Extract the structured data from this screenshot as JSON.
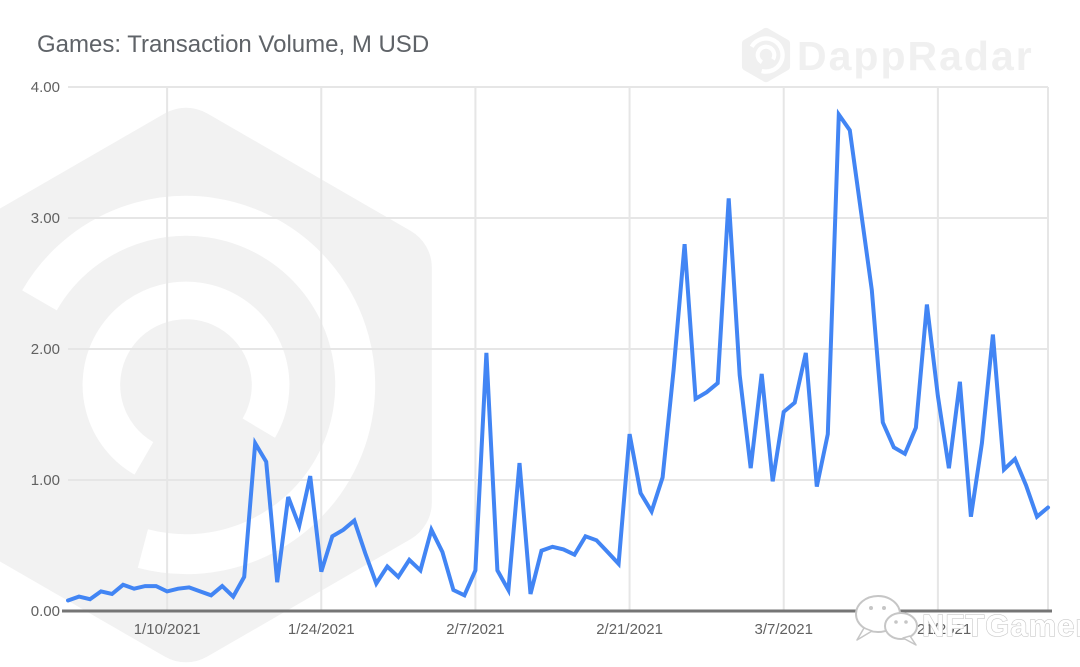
{
  "watermarks": {
    "dappradar": "DappRadar",
    "nftgamer": "NFTGamer"
  },
  "chart_data": {
    "type": "line",
    "title": "Games: Transaction Volume, M USD",
    "series_name": "Games transaction volume",
    "unit": "M USD",
    "line_color": "#4285f4",
    "grid_color": "#e6e6e6",
    "axis_color": "#757575",
    "label_color": "#616161",
    "title_color": "#5f6368",
    "watermark_color": "#f2f2f2",
    "legend": "none",
    "grid": true,
    "ylim": [
      0,
      4
    ],
    "y_ticks": [
      {
        "value": 0,
        "label": "0.00"
      },
      {
        "value": 1,
        "label": "1.00"
      },
      {
        "value": 2,
        "label": "2.00"
      },
      {
        "value": 3,
        "label": "3.00"
      },
      {
        "value": 4,
        "label": "4.00"
      }
    ],
    "x_tick_labels": [
      "1/10/2021",
      "1/24/2021",
      "2/7/2021",
      "2/21/2021",
      "3/7/2021",
      "3/21/2021"
    ],
    "x": [
      "1/1/2021",
      "1/2/2021",
      "1/3/2021",
      "1/4/2021",
      "1/5/2021",
      "1/6/2021",
      "1/7/2021",
      "1/8/2021",
      "1/9/2021",
      "1/10/2021",
      "1/11/2021",
      "1/12/2021",
      "1/13/2021",
      "1/14/2021",
      "1/15/2021",
      "1/16/2021",
      "1/17/2021",
      "1/18/2021",
      "1/19/2021",
      "1/20/2021",
      "1/21/2021",
      "1/22/2021",
      "1/23/2021",
      "1/24/2021",
      "1/25/2021",
      "1/26/2021",
      "1/27/2021",
      "1/28/2021",
      "1/29/2021",
      "1/30/2021",
      "1/31/2021",
      "2/1/2021",
      "2/2/2021",
      "2/3/2021",
      "2/4/2021",
      "2/5/2021",
      "2/6/2021",
      "2/7/2021",
      "2/8/2021",
      "2/9/2021",
      "2/10/2021",
      "2/11/2021",
      "2/12/2021",
      "2/13/2021",
      "2/14/2021",
      "2/15/2021",
      "2/16/2021",
      "2/17/2021",
      "2/18/2021",
      "2/19/2021",
      "2/20/2021",
      "2/21/2021",
      "2/22/2021",
      "2/23/2021",
      "2/24/2021",
      "2/25/2021",
      "2/26/2021",
      "2/27/2021",
      "2/28/2021",
      "3/1/2021",
      "3/2/2021",
      "3/3/2021",
      "3/4/2021",
      "3/5/2021",
      "3/6/2021",
      "3/7/2021",
      "3/8/2021",
      "3/9/2021",
      "3/10/2021",
      "3/11/2021",
      "3/12/2021",
      "3/13/2021",
      "3/14/2021",
      "3/15/2021",
      "3/16/2021",
      "3/17/2021",
      "3/18/2021",
      "3/19/2021",
      "3/20/2021",
      "3/21/2021",
      "3/22/2021",
      "3/23/2021",
      "3/24/2021",
      "3/25/2021",
      "3/26/2021",
      "3/27/2021",
      "3/28/2021",
      "3/29/2021",
      "3/30/2021",
      "3/31/2021"
    ],
    "values": [
      0.08,
      0.11,
      0.09,
      0.15,
      0.13,
      0.2,
      0.17,
      0.19,
      0.19,
      0.15,
      0.17,
      0.18,
      0.15,
      0.12,
      0.19,
      0.11,
      0.26,
      1.28,
      1.14,
      0.22,
      0.87,
      0.65,
      1.03,
      0.3,
      0.57,
      0.62,
      0.69,
      0.44,
      0.21,
      0.34,
      0.26,
      0.39,
      0.31,
      0.62,
      0.45,
      0.16,
      0.12,
      0.31,
      1.97,
      0.31,
      0.16,
      1.13,
      0.13,
      0.46,
      0.49,
      0.47,
      0.43,
      0.57,
      0.54,
      0.45,
      0.36,
      1.35,
      0.9,
      0.76,
      1.02,
      1.84,
      2.8,
      1.62,
      1.67,
      1.74,
      3.15,
      1.8,
      1.09,
      1.81,
      0.99,
      1.52,
      1.59,
      1.97,
      0.95,
      1.35,
      3.79,
      3.67,
      3.06,
      2.45,
      1.44,
      1.25,
      1.2,
      1.4,
      2.34,
      1.64,
      1.09,
      1.75,
      0.72,
      1.28,
      2.11,
      1.08,
      1.16,
      0.96,
      0.72,
      0.79
    ]
  }
}
